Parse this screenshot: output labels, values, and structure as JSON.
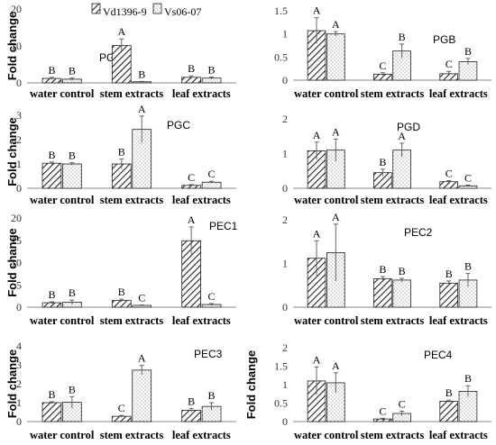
{
  "legend": {
    "series": [
      {
        "name": "Vd1396-9",
        "pattern": "hatch"
      },
      {
        "name": "Vs06-07",
        "pattern": "dots"
      }
    ]
  },
  "colors": {
    "bar_fill": "#ffffff",
    "bar_stroke": "#222222",
    "hatch": "#222222",
    "dots": "#555555",
    "axis": "#888888"
  },
  "chart_data": [
    {
      "type": "bar",
      "title": "PGA",
      "ylabel": "Fold change",
      "ylim": [
        0,
        20
      ],
      "yticks": [
        0,
        10,
        20
      ],
      "categories": [
        "water control",
        "stem extracts",
        "leaf extracts"
      ],
      "series": [
        {
          "name": "Vd1396-9",
          "values": [
            1.2,
            10.1,
            1.5
          ],
          "errors": [
            0.3,
            1.8,
            0.4
          ],
          "letters": [
            "B",
            "A",
            "B"
          ]
        },
        {
          "name": "Vs06-07",
          "values": [
            1.0,
            0.3,
            1.3
          ],
          "errors": [
            0.3,
            0.1,
            0.3
          ],
          "letters": [
            "B",
            "B",
            "B"
          ]
        }
      ]
    },
    {
      "type": "bar",
      "title": "PGB",
      "ylabel": "",
      "ylim": [
        0,
        1.5
      ],
      "yticks": [
        0,
        0.5,
        1,
        1.5
      ],
      "categories": [
        "water control",
        "stem extracts",
        "leaf extracts"
      ],
      "series": [
        {
          "name": "Vd1396-9",
          "values": [
            1.07,
            0.13,
            0.14
          ],
          "errors": [
            0.28,
            0.03,
            0.05
          ],
          "letters": [
            "A",
            "C",
            "C"
          ]
        },
        {
          "name": "Vs06-07",
          "values": [
            1.0,
            0.63,
            0.4
          ],
          "errors": [
            0.05,
            0.15,
            0.07
          ],
          "letters": [
            "A",
            "B",
            "B"
          ]
        }
      ]
    },
    {
      "type": "bar",
      "title": "PGC",
      "ylabel": "Fold change",
      "ylim": [
        0,
        3
      ],
      "yticks": [
        0,
        1,
        2,
        3
      ],
      "categories": [
        "water control",
        "stem extracts",
        "leaf extracts"
      ],
      "series": [
        {
          "name": "Vd1396-9",
          "values": [
            1.03,
            1.0,
            0.12
          ],
          "errors": [
            0.05,
            0.2,
            0.03
          ],
          "letters": [
            "B",
            "B",
            "C"
          ]
        },
        {
          "name": "Vs06-07",
          "values": [
            1.0,
            2.42,
            0.25
          ],
          "errors": [
            0.05,
            0.55,
            0.04
          ],
          "letters": [
            "B",
            "A",
            "C"
          ]
        }
      ]
    },
    {
      "type": "bar",
      "title": "PGD",
      "ylabel": "",
      "ylim": [
        0,
        2
      ],
      "yticks": [
        0,
        1,
        2
      ],
      "categories": [
        "water control",
        "stem extracts",
        "leaf extracts"
      ],
      "series": [
        {
          "name": "Vd1396-9",
          "values": [
            1.08,
            0.45,
            0.19
          ],
          "errors": [
            0.25,
            0.1,
            0.03
          ],
          "letters": [
            "A",
            "B",
            "C"
          ]
        },
        {
          "name": "Vs06-07",
          "values": [
            1.1,
            1.1,
            0.07
          ],
          "errors": [
            0.32,
            0.2,
            0.02
          ],
          "letters": [
            "A",
            "A",
            "C"
          ]
        }
      ]
    },
    {
      "type": "bar",
      "title": "PEC1",
      "ylabel": "Fold change",
      "ylim": [
        0,
        20
      ],
      "yticks": [
        0,
        5,
        10,
        15,
        20
      ],
      "categories": [
        "water control",
        "stem extracts",
        "leaf extracts"
      ],
      "series": [
        {
          "name": "Vd1396-9",
          "values": [
            1.0,
            1.5,
            14.9
          ],
          "errors": [
            0.2,
            0.3,
            3.1
          ],
          "letters": [
            "B",
            "B",
            "A"
          ]
        },
        {
          "name": "Vs06-07",
          "values": [
            1.1,
            0.4,
            0.6
          ],
          "errors": [
            0.5,
            0.1,
            0.2
          ],
          "letters": [
            "B",
            "C",
            "C"
          ]
        }
      ]
    },
    {
      "type": "bar",
      "title": "PEC2",
      "ylabel": "",
      "ylim": [
        0,
        2
      ],
      "yticks": [
        0,
        1,
        2
      ],
      "categories": [
        "water control",
        "stem extracts",
        "leaf extracts"
      ],
      "series": [
        {
          "name": "Vd1396-9",
          "values": [
            1.12,
            0.65,
            0.55
          ],
          "errors": [
            0.4,
            0.05,
            0.05
          ],
          "letters": [
            "A",
            "B",
            "B"
          ]
        },
        {
          "name": "Vs06-07",
          "values": [
            1.25,
            0.62,
            0.62
          ],
          "errors": [
            0.65,
            0.04,
            0.15
          ],
          "letters": [
            "A",
            "B",
            "B"
          ]
        }
      ]
    },
    {
      "type": "bar",
      "title": "PEC3",
      "ylabel": "Fold change",
      "ylim": [
        0,
        4
      ],
      "yticks": [
        0,
        1,
        2,
        3,
        4
      ],
      "categories": [
        "water control",
        "stem extracts",
        "leaf extracts"
      ],
      "series": [
        {
          "name": "Vd1396-9",
          "values": [
            1.0,
            0.28,
            0.6
          ],
          "errors": [
            0.05,
            0.05,
            0.1
          ],
          "letters": [
            "B",
            "C",
            "B"
          ]
        },
        {
          "name": "Vs06-07",
          "values": [
            1.02,
            2.72,
            0.8
          ],
          "errors": [
            0.3,
            0.25,
            0.2
          ],
          "letters": [
            "B",
            "A",
            "B"
          ]
        }
      ]
    },
    {
      "type": "bar",
      "title": "PEC4",
      "ylabel": "Fold change",
      "ylim": [
        0,
        2
      ],
      "yticks": [
        0,
        0.5,
        1,
        1.5,
        2
      ],
      "categories": [
        "water control",
        "stem extracts",
        "leaf extracts"
      ],
      "series": [
        {
          "name": "Vd1396-9",
          "values": [
            1.1,
            0.07,
            0.55
          ],
          "errors": [
            0.38,
            0.02,
            0.03
          ],
          "letters": [
            "A",
            "C",
            "B"
          ]
        },
        {
          "name": "Vs06-07",
          "values": [
            1.05,
            0.22,
            0.82
          ],
          "errors": [
            0.27,
            0.06,
            0.15
          ],
          "letters": [
            "A",
            "C",
            "B"
          ]
        }
      ]
    }
  ]
}
